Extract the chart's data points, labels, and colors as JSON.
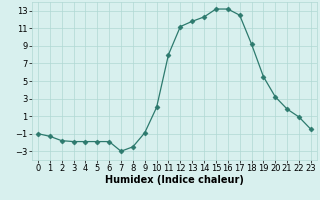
{
  "x": [
    0,
    1,
    2,
    3,
    4,
    5,
    6,
    7,
    8,
    9,
    10,
    11,
    12,
    13,
    14,
    15,
    16,
    17,
    18,
    19,
    20,
    21,
    22,
    23
  ],
  "y": [
    -1,
    -1.3,
    -1.8,
    -1.9,
    -1.9,
    -1.9,
    -1.9,
    -3.0,
    -2.5,
    -0.9,
    2.0,
    8.0,
    11.2,
    11.8,
    12.3,
    13.2,
    13.2,
    12.5,
    9.2,
    5.5,
    3.2,
    1.8,
    0.9,
    -0.5
  ],
  "line_color": "#2d7a6e",
  "marker": "D",
  "marker_size": 2.5,
  "bg_color": "#d8f0ee",
  "grid_color": "#b0d8d4",
  "xlabel": "Humidex (Indice chaleur)",
  "xlabel_fontsize": 7,
  "tick_fontsize": 6,
  "ylim": [
    -4,
    14
  ],
  "yticks": [
    -3,
    -1,
    1,
    3,
    5,
    7,
    9,
    11,
    13
  ],
  "xticks": [
    0,
    1,
    2,
    3,
    4,
    5,
    6,
    7,
    8,
    9,
    10,
    11,
    12,
    13,
    14,
    15,
    16,
    17,
    18,
    19,
    20,
    21,
    22,
    23
  ],
  "xlim": [
    -0.5,
    23.5
  ]
}
